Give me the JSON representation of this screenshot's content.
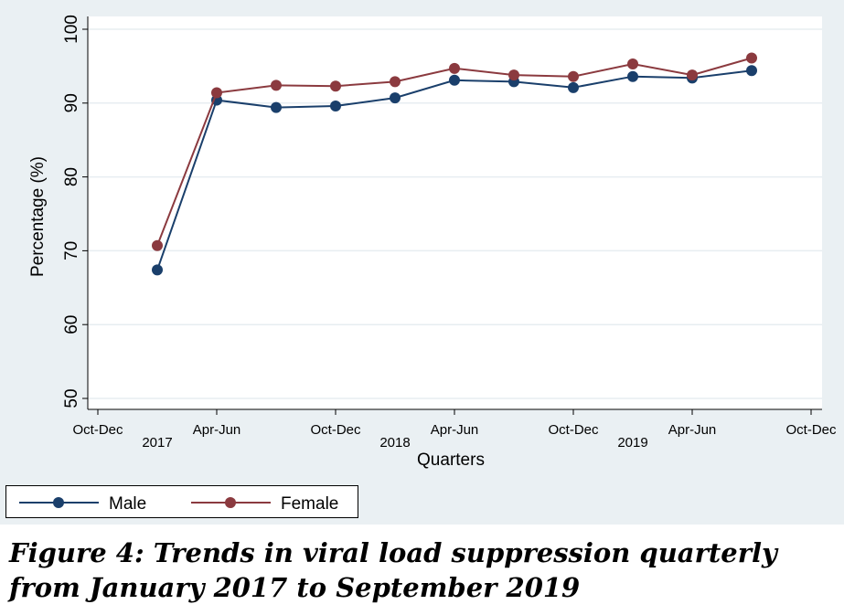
{
  "chart_data": {
    "type": "line",
    "xlabel": "Quarters",
    "ylabel": "Percentage (%)",
    "ylim": [
      50,
      100
    ],
    "yticks": [
      50,
      60,
      70,
      80,
      90,
      100
    ],
    "x_tick_labels": [
      "Oct-Dec",
      "Apr-Jun",
      "Oct-Dec",
      "Apr-Jun",
      "Oct-Dec",
      "Apr-Jun",
      "Oct-Dec"
    ],
    "x_year_labels": [
      "2017",
      "2018",
      "2019"
    ],
    "grid": true,
    "legend_position": "bottom-left",
    "categories": [
      "Jan-Mar 2017",
      "Apr-Jun 2017",
      "Jul-Sep 2017",
      "Oct-Dec 2017",
      "Jan-Mar 2018",
      "Apr-Jun 2018",
      "Jul-Sep 2018",
      "Oct-Dec 2018",
      "Jan-Mar 2019",
      "Apr-Jun 2019",
      "Jul-Sep 2019"
    ],
    "series": [
      {
        "name": "Male",
        "color": "#1a3f6b",
        "values": [
          67.4,
          90.4,
          89.4,
          89.6,
          90.7,
          93.1,
          92.9,
          92.1,
          93.6,
          93.4,
          94.4
        ]
      },
      {
        "name": "Female",
        "color": "#8b3a3f",
        "values": [
          70.7,
          91.4,
          92.4,
          92.3,
          92.9,
          94.7,
          93.8,
          93.6,
          95.3,
          93.8,
          96.1
        ]
      }
    ]
  },
  "caption": "Figure 4: Trends in viral load suppression quarterly from January 2017 to September 2019"
}
